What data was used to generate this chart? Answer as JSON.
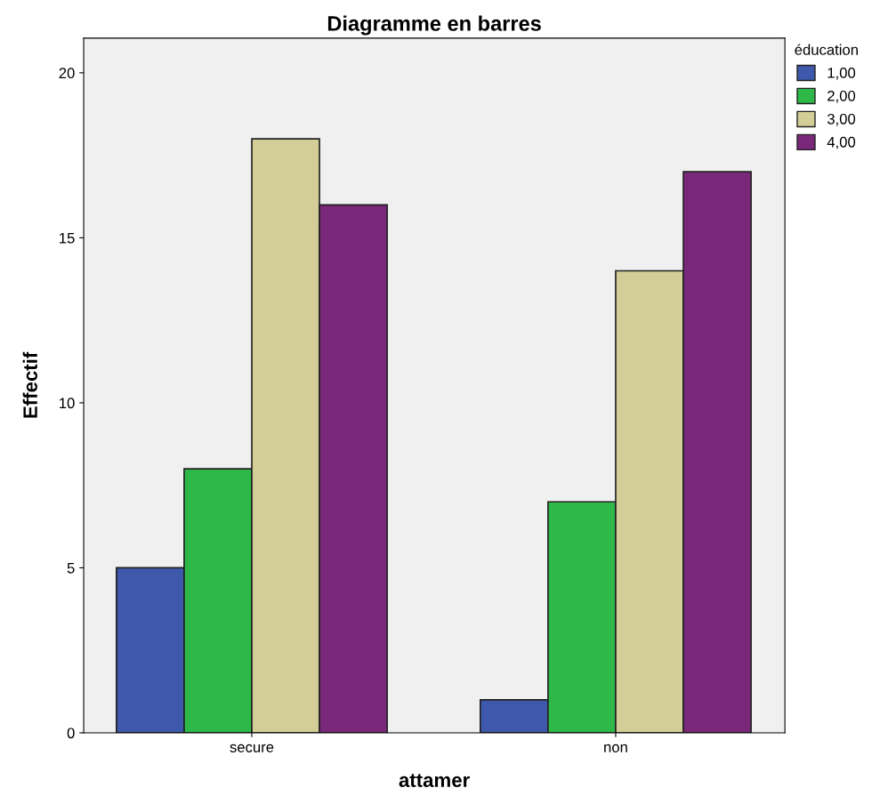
{
  "chart_data": {
    "type": "bar",
    "title": "Diagramme en barres",
    "xlabel": "attamer",
    "ylabel": "Effectif",
    "legend_title": "éducation",
    "categories": [
      "secure",
      "non"
    ],
    "series": [
      {
        "name": "1,00",
        "color": "#3e58ac",
        "values": [
          5,
          1
        ]
      },
      {
        "name": "2,00",
        "color": "#2eb848",
        "values": [
          8,
          7
        ]
      },
      {
        "name": "3,00",
        "color": "#d3ce97",
        "values": [
          18,
          14
        ]
      },
      {
        "name": "4,00",
        "color": "#79287a",
        "values": [
          16,
          17
        ]
      }
    ],
    "ylim": [
      0,
      21.05
    ],
    "yticks": [
      0,
      5,
      10,
      15,
      20
    ],
    "grid": false,
    "legend": "top right"
  }
}
